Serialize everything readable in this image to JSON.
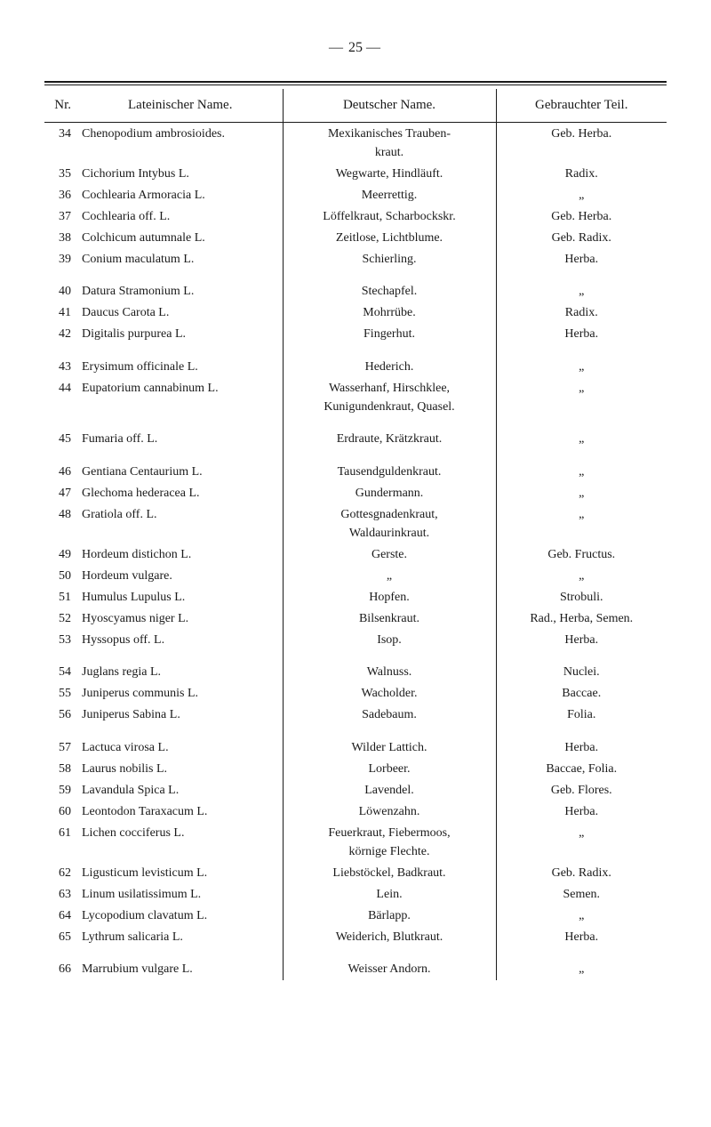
{
  "page": {
    "number": "25",
    "dash": "—"
  },
  "headers": {
    "nr": "Nr.",
    "latin": " Lateinischer Name.",
    "german": "Deutscher Name.",
    "usage": "Gebrauchter Teil."
  },
  "rows": [
    {
      "nr": "34",
      "latin": "Chenopodium ambrosioides.",
      "german": "Mexikanisches Trauben-\nkraut.",
      "usage": "Geb. Herba.",
      "gap": false
    },
    {
      "nr": "35",
      "latin": "Cichorium Intybus L.",
      "german": "Wegwarte, Hindläuft.",
      "usage": "Radix.",
      "gap": false
    },
    {
      "nr": "36",
      "latin": "Cochlearia Armoracia L.",
      "german": "Meerrettig.",
      "usage": "„",
      "gap": false
    },
    {
      "nr": "37",
      "latin": "Cochlearia off. L.",
      "german": "Löffelkraut, Scharbockskr.",
      "usage": "Geb. Herba.",
      "gap": false
    },
    {
      "nr": "38",
      "latin": "Colchicum autumnale L.",
      "german": "Zeitlose, Lichtblume.",
      "usage": "Geb. Radix.",
      "gap": false
    },
    {
      "nr": "39",
      "latin": "Conium maculatum L.",
      "german": "Schierling.",
      "usage": "Herba.",
      "gap": false
    },
    {
      "nr": "40",
      "latin": "Datura Stramonium L.",
      "german": "Stechapfel.",
      "usage": "„",
      "gap": true
    },
    {
      "nr": "41",
      "latin": "Daucus Carota L.",
      "german": "Mohrrübe.",
      "usage": "Radix.",
      "gap": false
    },
    {
      "nr": "42",
      "latin": "Digitalis purpurea L.",
      "german": "Fingerhut.",
      "usage": "Herba.",
      "gap": false
    },
    {
      "nr": "43",
      "latin": "Erysimum officinale L.",
      "german": "Hederich.",
      "usage": "„",
      "gap": true
    },
    {
      "nr": "44",
      "latin": "Eupatorium cannabinum L.",
      "german": "Wasserhanf, Hirschklee,\nKunigundenkraut, Quasel.",
      "usage": "„",
      "gap": false
    },
    {
      "nr": "45",
      "latin": "Fumaria off. L.",
      "german": "Erdraute, Krätzkraut.",
      "usage": "„",
      "gap": true
    },
    {
      "nr": "46",
      "latin": "Gentiana Centaurium L.",
      "german": "Tausendguldenkraut.",
      "usage": "„",
      "gap": true
    },
    {
      "nr": "47",
      "latin": "Glechoma hederacea L.",
      "german": "Gundermann.",
      "usage": "„",
      "gap": false
    },
    {
      "nr": "48",
      "latin": "Gratiola off. L.",
      "german": "Gottesgnadenkraut,\nWaldaurinkraut.",
      "usage": "„",
      "gap": false
    },
    {
      "nr": "49",
      "latin": "Hordeum distichon L.",
      "german": "Gerste.",
      "usage": "Geb. Fructus.",
      "gap": false
    },
    {
      "nr": "50",
      "latin": "Hordeum vulgare.",
      "german": "„",
      "usage": "„",
      "gap": false
    },
    {
      "nr": "51",
      "latin": "Humulus Lupulus L.",
      "german": "Hopfen.",
      "usage": "Strobuli.",
      "gap": false
    },
    {
      "nr": "52",
      "latin": "Hyoscyamus niger L.",
      "german": "Bilsenkraut.",
      "usage": "Rad., Herba, Semen.",
      "gap": false
    },
    {
      "nr": "53",
      "latin": "Hyssopus off. L.",
      "german": "Isop.",
      "usage": "Herba.",
      "gap": false
    },
    {
      "nr": "54",
      "latin": "Juglans regia L.",
      "german": "Walnuss.",
      "usage": "Nuclei.",
      "gap": true
    },
    {
      "nr": "55",
      "latin": "Juniperus communis L.",
      "german": "Wacholder.",
      "usage": "Baccae.",
      "gap": false
    },
    {
      "nr": "56",
      "latin": "Juniperus Sabina L.",
      "german": "Sadebaum.",
      "usage": "Folia.",
      "gap": false
    },
    {
      "nr": "57",
      "latin": "Lactuca virosa L.",
      "german": "Wilder Lattich.",
      "usage": "Herba.",
      "gap": true
    },
    {
      "nr": "58",
      "latin": "Laurus nobilis L.",
      "german": "Lorbeer.",
      "usage": "Baccae, Folia.",
      "gap": false
    },
    {
      "nr": "59",
      "latin": "Lavandula Spica L.",
      "german": "Lavendel.",
      "usage": "Geb. Flores.",
      "gap": false
    },
    {
      "nr": "60",
      "latin": "Leontodon Taraxacum L.",
      "german": "Löwenzahn.",
      "usage": "Herba.",
      "gap": false
    },
    {
      "nr": "61",
      "latin": "Lichen cocciferus L.",
      "german": "Feuerkraut, Fiebermoos,\nkörnige Flechte.",
      "usage": "„",
      "gap": false
    },
    {
      "nr": "62",
      "latin": "Ligusticum levisticum L.",
      "german": "Liebstöckel, Badkraut.",
      "usage": "Geb. Radix.",
      "gap": false
    },
    {
      "nr": "63",
      "latin": "Linum usilatissimum L.",
      "german": "Lein.",
      "usage": "Semen.",
      "gap": false
    },
    {
      "nr": "64",
      "latin": "Lycopodium clavatum L.",
      "german": "Bärlapp.",
      "usage": "„",
      "gap": false
    },
    {
      "nr": "65",
      "latin": "Lythrum salicaria L.",
      "german": "Weiderich, Blutkraut.",
      "usage": "Herba.",
      "gap": false
    },
    {
      "nr": "66",
      "latin": "Marrubium vulgare L.",
      "german": "Weisser Andorn.",
      "usage": "„",
      "gap": true
    }
  ]
}
